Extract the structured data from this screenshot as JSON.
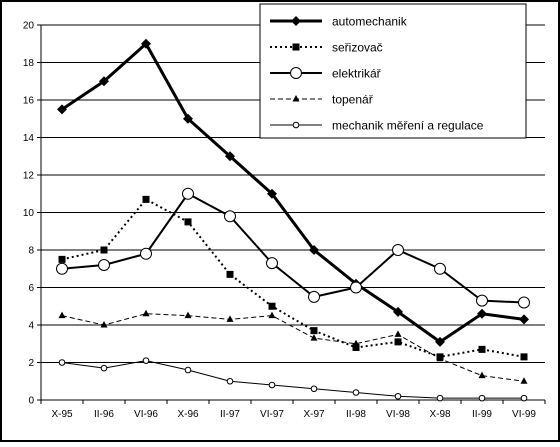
{
  "chart_data": {
    "type": "line",
    "categories": [
      "X-95",
      "II-96",
      "VI-96",
      "X-96",
      "II-97",
      "VI-97",
      "X-97",
      "II-98",
      "VI-98",
      "X-98",
      "II-99",
      "VI-99"
    ],
    "ylim": [
      0,
      20
    ],
    "yticks": [
      0,
      2,
      4,
      6,
      8,
      10,
      12,
      14,
      16,
      18,
      20
    ],
    "grid": "horizontal",
    "legend_position": "top-right",
    "series": [
      {
        "name": "automechanik",
        "marker": "diamond",
        "line": "solid-bold",
        "color": "#000000",
        "values": [
          15.5,
          17.0,
          19.0,
          15.0,
          13.0,
          11.0,
          8.0,
          6.2,
          4.7,
          3.1,
          4.6,
          4.3
        ]
      },
      {
        "name": "seřizovač",
        "marker": "square",
        "line": "dotted",
        "color": "#000000",
        "values": [
          7.5,
          8.0,
          10.7,
          9.5,
          6.7,
          5.0,
          3.7,
          2.8,
          3.1,
          2.3,
          2.7,
          2.3
        ]
      },
      {
        "name": "elektrikář",
        "marker": "circle-open-large",
        "line": "solid",
        "color": "#000000",
        "values": [
          7.0,
          7.2,
          7.8,
          11.0,
          9.8,
          7.3,
          5.5,
          6.0,
          8.0,
          7.0,
          5.3,
          5.2
        ]
      },
      {
        "name": "topenář",
        "marker": "triangle",
        "line": "dashed",
        "color": "#000000",
        "values": [
          4.5,
          4.0,
          4.6,
          4.5,
          4.3,
          4.5,
          3.3,
          3.0,
          3.5,
          2.2,
          1.3,
          1.0
        ]
      },
      {
        "name": "mechanik měření a regulace",
        "marker": "circle-open-small",
        "line": "thin",
        "color": "#000000",
        "values": [
          2.0,
          1.7,
          2.1,
          1.6,
          1.0,
          0.8,
          0.6,
          0.4,
          0.2,
          0.1,
          0.1,
          0.1
        ]
      }
    ]
  }
}
